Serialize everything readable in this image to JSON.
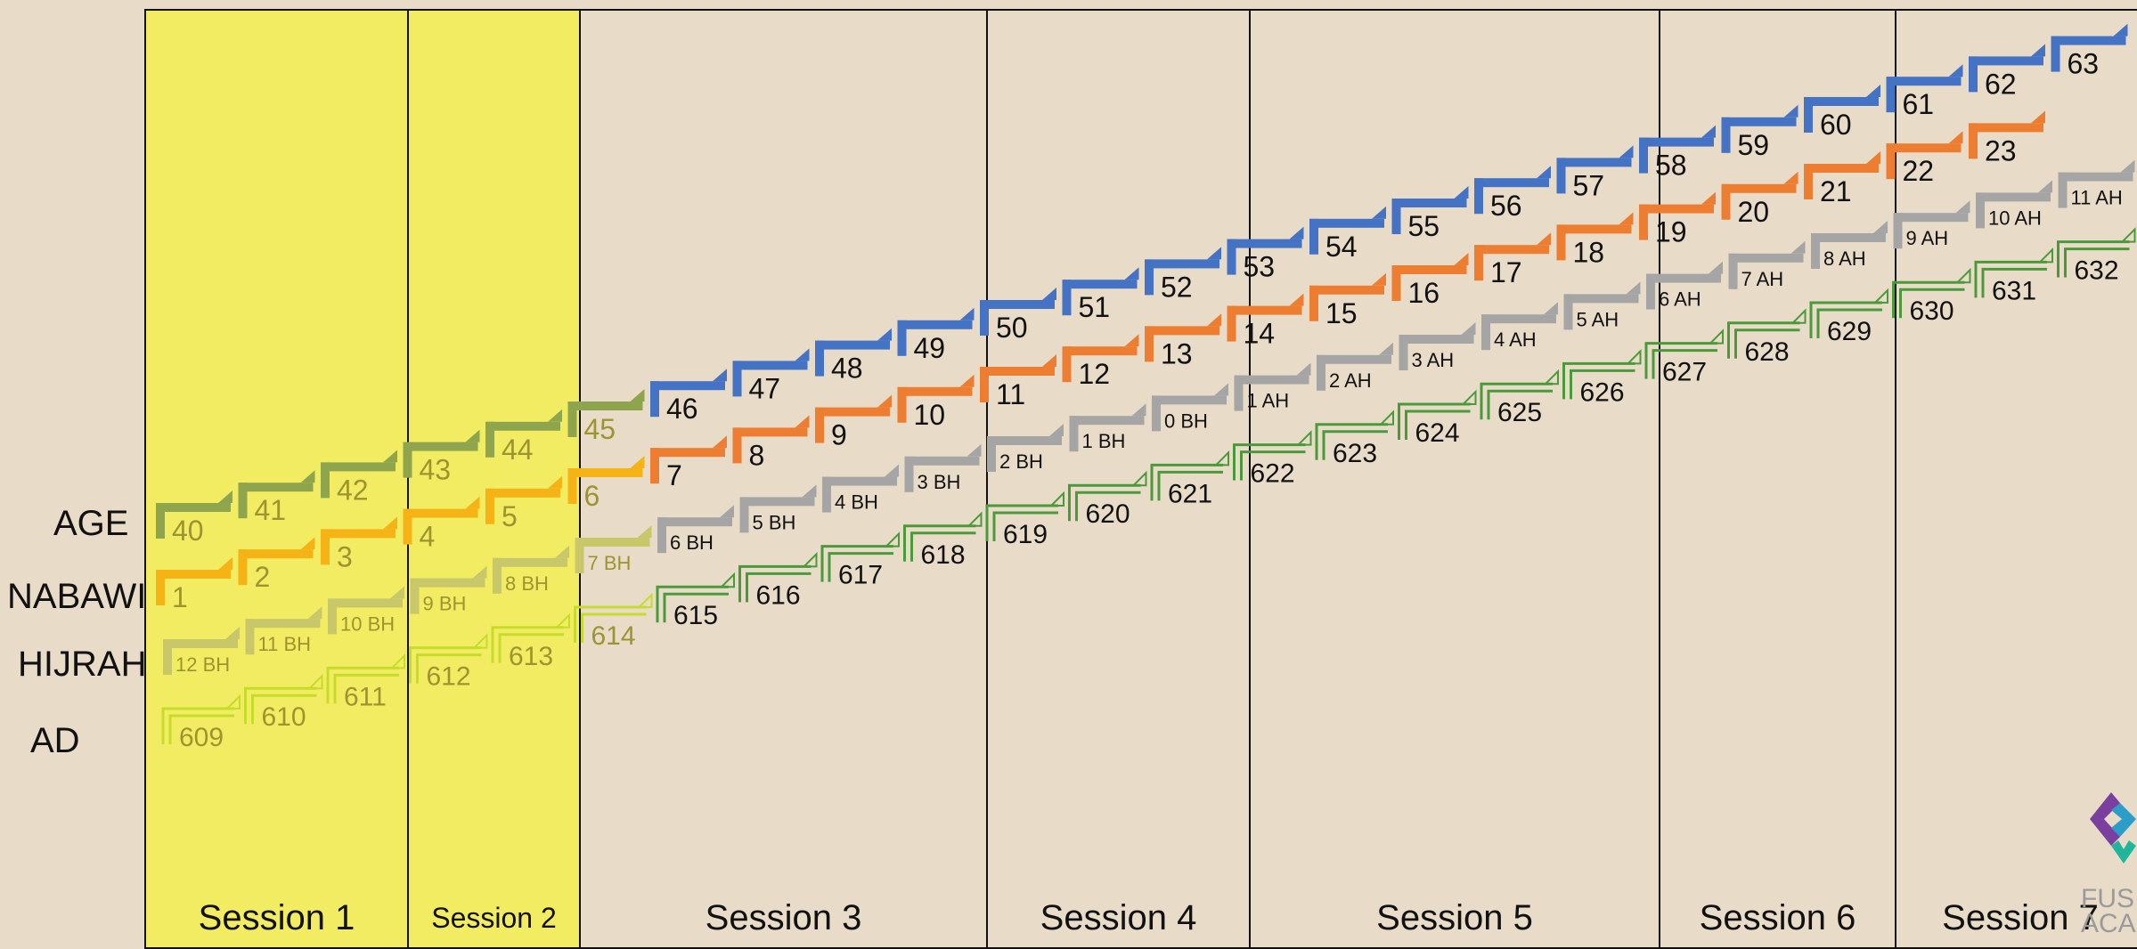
{
  "row_labels": {
    "age": "AGE",
    "nabawi": "NABAWI",
    "hijrah": "HIJRAH",
    "ad": "AD"
  },
  "sessions": [
    {
      "label": "Session 1",
      "highlight": true
    },
    {
      "label": "Session 2",
      "highlight": true
    },
    {
      "label": "Session 3",
      "highlight": false
    },
    {
      "label": "Session 4",
      "highlight": false
    },
    {
      "label": "Session 5",
      "highlight": false
    },
    {
      "label": "Session 6",
      "highlight": false
    },
    {
      "label": "Session 7",
      "highlight": false
    }
  ],
  "series": {
    "age": {
      "color": "#4472c4",
      "values": [
        "40",
        "41",
        "42",
        "43",
        "44",
        "45",
        "46",
        "47",
        "48",
        "49",
        "50",
        "51",
        "52",
        "53",
        "54",
        "55",
        "56",
        "57",
        "58",
        "59",
        "60",
        "61",
        "62",
        "63"
      ]
    },
    "nabawi": {
      "color": "#ed7d31",
      "values": [
        "1",
        "2",
        "3",
        "4",
        "5",
        "6",
        "7",
        "8",
        "9",
        "10",
        "11",
        "12",
        "13",
        "14",
        "15",
        "16",
        "17",
        "18",
        "19",
        "20",
        "21",
        "22",
        "23"
      ]
    },
    "hijrah": {
      "color": "#a5a5a5",
      "values": [
        "12 BH",
        "11 BH",
        "10 BH",
        "9 BH",
        "8 BH",
        "7 BH",
        "6 BH",
        "5 BH",
        "4 BH",
        "3 BH",
        "2 BH",
        "1 BH",
        "0 BH",
        "1 AH",
        "2 AH",
        "3 AH",
        "4 AH",
        "5 AH",
        "6 AH",
        "7 AH",
        "8 AH",
        "9 AH",
        "10 AH",
        "11 AH"
      ]
    },
    "ad": {
      "color": "#70ad47",
      "values": [
        "609",
        "610",
        "611",
        "612",
        "613",
        "614",
        "615",
        "616",
        "617",
        "618",
        "619",
        "620",
        "621",
        "622",
        "623",
        "624",
        "625",
        "626",
        "627",
        "628",
        "629",
        "630",
        "631",
        "632"
      ]
    }
  },
  "logo": {
    "text": "FUS\nACA"
  }
}
